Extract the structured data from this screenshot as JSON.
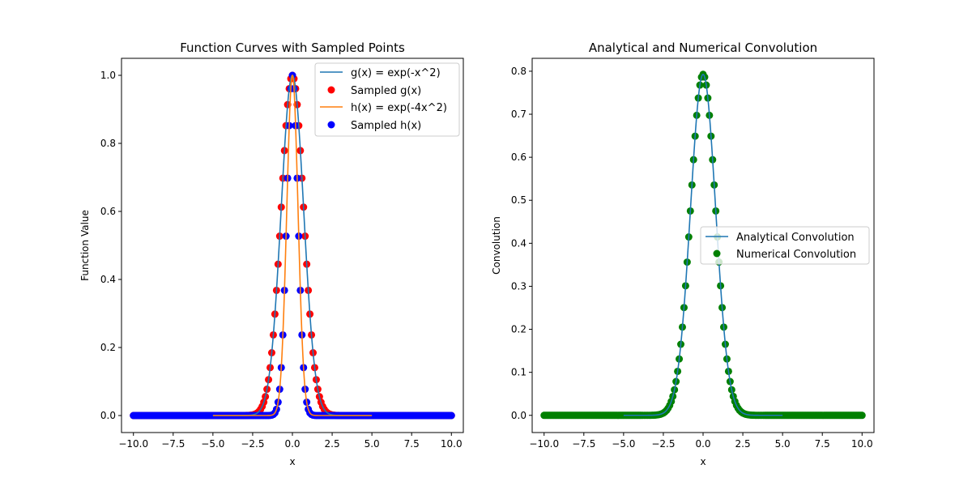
{
  "colors": {
    "g_line": "#1f77b4",
    "h_line": "#ff7f0e",
    "g_samples": "#ff0000",
    "h_samples": "#0000ff",
    "conv_line": "#1f77b4",
    "conv_samples": "#008000"
  },
  "chart_data": [
    {
      "type": "line",
      "title": "Function Curves with Sampled Points",
      "xlabel": "x",
      "ylabel": "Function Value",
      "xlim": [
        -10.75,
        10.75
      ],
      "ylim": [
        -0.05,
        1.05
      ],
      "xticks": [
        -10,
        -7.5,
        -5,
        -2.5,
        0,
        2.5,
        5,
        7.5,
        10
      ],
      "xtick_labels": [
        "−10.0",
        "−7.5",
        "−5.0",
        "−2.5",
        "0.0",
        "2.5",
        "5.0",
        "7.5",
        "10.0"
      ],
      "yticks": [
        0,
        0.2,
        0.4,
        0.6,
        0.8,
        1.0
      ],
      "ytick_labels": [
        "0.0",
        "0.2",
        "0.4",
        "0.6",
        "0.8",
        "1.0"
      ],
      "grid": false,
      "legend_position": "upper right",
      "series": [
        {
          "name": "g(x) = exp(-x^2)",
          "kind": "line",
          "function": "exp(-x^2)",
          "x_range": [
            -5,
            5
          ]
        },
        {
          "name": "Sampled g(x)",
          "kind": "scatter",
          "function": "exp(-x^2)",
          "x_range": [
            -10,
            10
          ],
          "samples": 201
        },
        {
          "name": "h(x) = exp(-4x^2)",
          "kind": "line",
          "function": "exp(-4x^2)",
          "x_range": [
            -5,
            5
          ]
        },
        {
          "name": "Sampled h(x)",
          "kind": "scatter",
          "function": "exp(-4x^2)",
          "x_range": [
            -10,
            10
          ],
          "samples": 201
        }
      ]
    },
    {
      "type": "line",
      "title": "Analytical and Numerical Convolution",
      "xlabel": "x",
      "ylabel": "Convolution",
      "xlim": [
        -10.75,
        10.75
      ],
      "ylim": [
        -0.04,
        0.83
      ],
      "xticks": [
        -10,
        -7.5,
        -5,
        -2.5,
        0,
        2.5,
        5,
        7.5,
        10
      ],
      "xtick_labels": [
        "−10.0",
        "−7.5",
        "−5.0",
        "−2.5",
        "0.0",
        "2.5",
        "5.0",
        "7.5",
        "10.0"
      ],
      "yticks": [
        0,
        0.1,
        0.2,
        0.3,
        0.4,
        0.5,
        0.6,
        0.7,
        0.8
      ],
      "ytick_labels": [
        "0.0",
        "0.1",
        "0.2",
        "0.3",
        "0.4",
        "0.5",
        "0.6",
        "0.7",
        "0.8"
      ],
      "grid": false,
      "legend_position": "center right",
      "series": [
        {
          "name": "Analytical Convolution",
          "kind": "line",
          "function": "0.7927*exp(-0.8x^2)",
          "peak": 0.7927,
          "x_range": [
            -5,
            5
          ]
        },
        {
          "name": "Numerical Convolution",
          "kind": "scatter",
          "function": "0.7927*exp(-0.8x^2)",
          "peak": 0.7927,
          "x_range": [
            -10,
            10
          ],
          "samples": 201
        }
      ]
    }
  ]
}
